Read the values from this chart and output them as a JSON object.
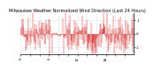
{
  "title": "Milwaukee Weather Normalized Wind Direction (Last 24 Hours)",
  "ylim": [
    -1.5,
    1.5
  ],
  "yticks": [
    1,
    0,
    -1
  ],
  "ytick_labels": [
    "1",
    "0",
    "-1"
  ],
  "bar_color": "#cc0000",
  "bg_color": "#ffffff",
  "grid_color": "#bbbbbb",
  "n_points": 288,
  "seed": 42,
  "title_fontsize": 3.5,
  "tick_fontsize": 2.8
}
